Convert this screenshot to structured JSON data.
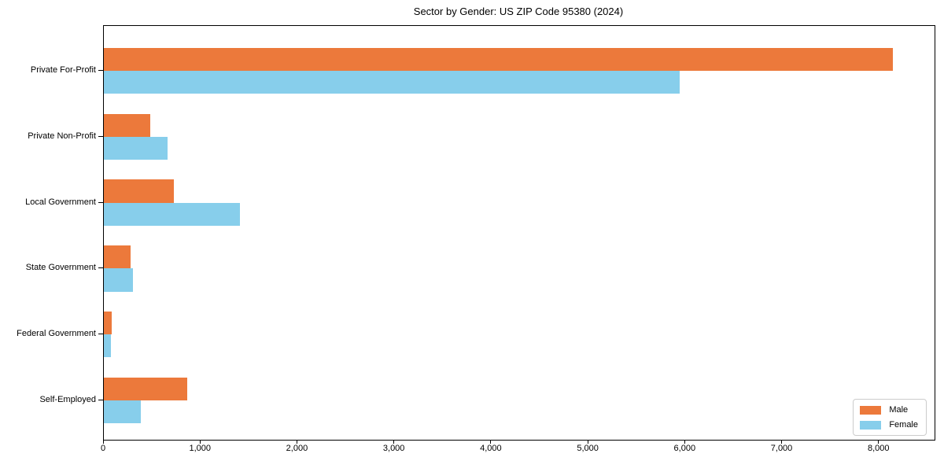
{
  "title": "Sector by Gender: US ZIP Code 95380 (2024)",
  "chart_data": {
    "type": "bar",
    "orientation": "horizontal",
    "title": "Sector by Gender: US ZIP Code 95380 (2024)",
    "categories": [
      "Private For-Profit",
      "Private Non-Profit",
      "Local Government",
      "State Government",
      "Federal Government",
      "Self-Employed"
    ],
    "series": [
      {
        "name": "Male",
        "color": "#ec793b",
        "values": [
          8140,
          475,
          725,
          275,
          80,
          860
        ]
      },
      {
        "name": "Female",
        "color": "#87ceeb",
        "values": [
          5940,
          660,
          1400,
          300,
          70,
          385
        ]
      }
    ],
    "xlabel": "",
    "ylabel": "",
    "xlim": [
      0,
      8570
    ],
    "x_ticks": [
      0,
      1000,
      2000,
      3000,
      4000,
      5000,
      6000,
      7000,
      8000
    ],
    "x_tick_labels": [
      "0",
      "1,000",
      "2,000",
      "3,000",
      "4,000",
      "5,000",
      "6,000",
      "7,000",
      "8,000"
    ],
    "grid": false,
    "legend_position": "lower right"
  },
  "legend": {
    "male_label": "Male",
    "female_label": "Female"
  }
}
